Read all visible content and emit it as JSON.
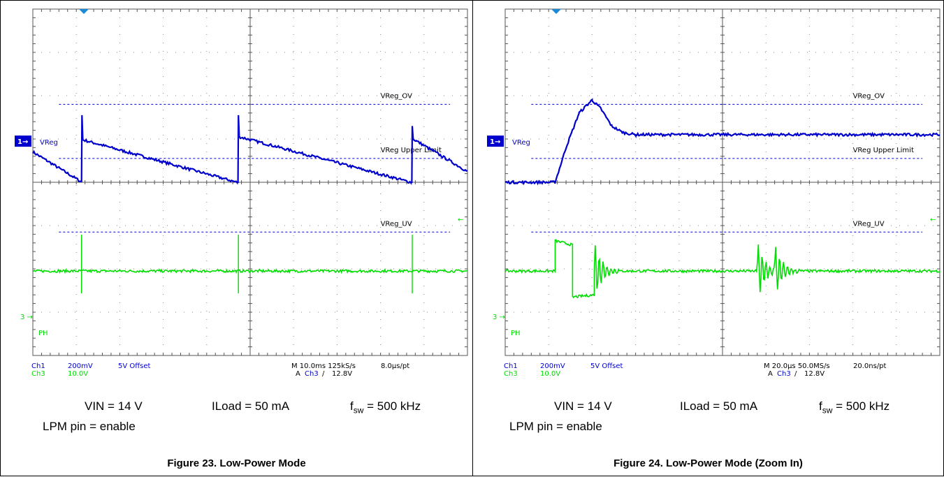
{
  "colors": {
    "ch1": "#0000cc",
    "ch3": "#00dd00",
    "grid": "#555555",
    "background": "#ffffff"
  },
  "chart_data": [
    {
      "type": "line",
      "title": "",
      "caption": "Figure 23. Low-Power Mode",
      "divisions": {
        "x": 10,
        "y": 8
      },
      "grid": true,
      "ch1": {
        "label": "Ch1",
        "scale": "200mV",
        "offset": "5V Offset",
        "trace_label": "VReg",
        "marker": "1"
      },
      "ch3": {
        "label": "Ch3",
        "scale": "10.0V",
        "trace_label": "PH",
        "marker": "3"
      },
      "timebase": "M 10.0ms 125kS/s",
      "resolution": "8.0µs/pt",
      "trigger": {
        "prefix": "A",
        "source": "Ch3",
        "slope": "/",
        "level": "12.8V"
      },
      "reference_lines": [
        {
          "label": "VReg_OV",
          "y_div": 1.8
        },
        {
          "label": "VReg Upper Limit",
          "y_div": 0.55
        },
        {
          "label": "VReg_UV",
          "y_div": -1.15
        }
      ],
      "series": [
        {
          "name": "VReg",
          "channel": "Ch1",
          "x_div": [
            -5,
            -3.9,
            -3.88,
            -3.87,
            -3.85,
            -0.3,
            -0.28,
            -0.27,
            -0.25,
            3.7,
            3.72,
            3.73,
            3.75,
            5
          ],
          "y_div": [
            0.7,
            0.02,
            0.02,
            1.55,
            0.98,
            0.0,
            0.0,
            1.55,
            1.05,
            0.0,
            0.0,
            1.3,
            1.0,
            0.25
          ]
        },
        {
          "name": "PH",
          "channel": "Ch3",
          "x_div": [
            -5,
            5
          ],
          "y_div": [
            -2.05,
            -2.05
          ],
          "spikes_x_div": [
            -3.88,
            -0.27,
            3.73
          ]
        }
      ],
      "conditions": {
        "vin": "VIN = 14 V",
        "iload": "ILoad = 50 mA",
        "fsw_label": "f",
        "fsw_sub": "sw",
        "fsw_value": " = 500 kHz",
        "lpm": "LPM pin = enable"
      }
    },
    {
      "type": "line",
      "title": "",
      "caption": "Figure 24. Low-Power Mode (Zoom In)",
      "divisions": {
        "x": 10,
        "y": 8
      },
      "grid": true,
      "ch1": {
        "label": "Ch1",
        "scale": "200mV",
        "offset": "5V Offset",
        "trace_label": "VReg",
        "marker": "1"
      },
      "ch3": {
        "label": "Ch3",
        "scale": "10.0V",
        "trace_label": "PH",
        "marker": "3"
      },
      "timebase": "M 20.0µs 50.0MS/s",
      "resolution": "20.0ns/pt",
      "trigger": {
        "prefix": "A",
        "source": "Ch3",
        "slope": "/",
        "level": "12.8V"
      },
      "reference_lines": [
        {
          "label": "VReg_OV",
          "y_div": 1.8
        },
        {
          "label": "VReg Upper Limit",
          "y_div": 0.55
        },
        {
          "label": "VReg_UV",
          "y_div": -1.15
        }
      ],
      "series": [
        {
          "name": "VReg",
          "channel": "Ch1",
          "x_div": [
            -5,
            -3.85,
            -3.6,
            -3.3,
            -3.0,
            -2.8,
            -2.55,
            -2.3,
            -2.0,
            5
          ],
          "y_div": [
            0.0,
            0.0,
            0.8,
            1.6,
            1.9,
            1.7,
            1.3,
            1.15,
            1.1,
            1.1
          ]
        },
        {
          "name": "PH",
          "channel": "Ch3",
          "x_div": [
            -5,
            -3.85,
            -3.85,
            -3.45,
            -3.45,
            -2.95,
            -2.95,
            5
          ],
          "y_div": [
            -2.05,
            -2.05,
            -1.35,
            -1.45,
            -2.65,
            -2.6,
            -2.05,
            -2.05
          ],
          "ringing_x_div": [
            -2.95,
            0.8,
            1.2
          ]
        }
      ],
      "conditions": {
        "vin": "VIN = 14 V",
        "iload": "ILoad = 50 mA",
        "fsw_label": "f",
        "fsw_sub": "sw",
        "fsw_value": " = 500 kHz",
        "lpm": "LPM pin = enable"
      }
    }
  ]
}
